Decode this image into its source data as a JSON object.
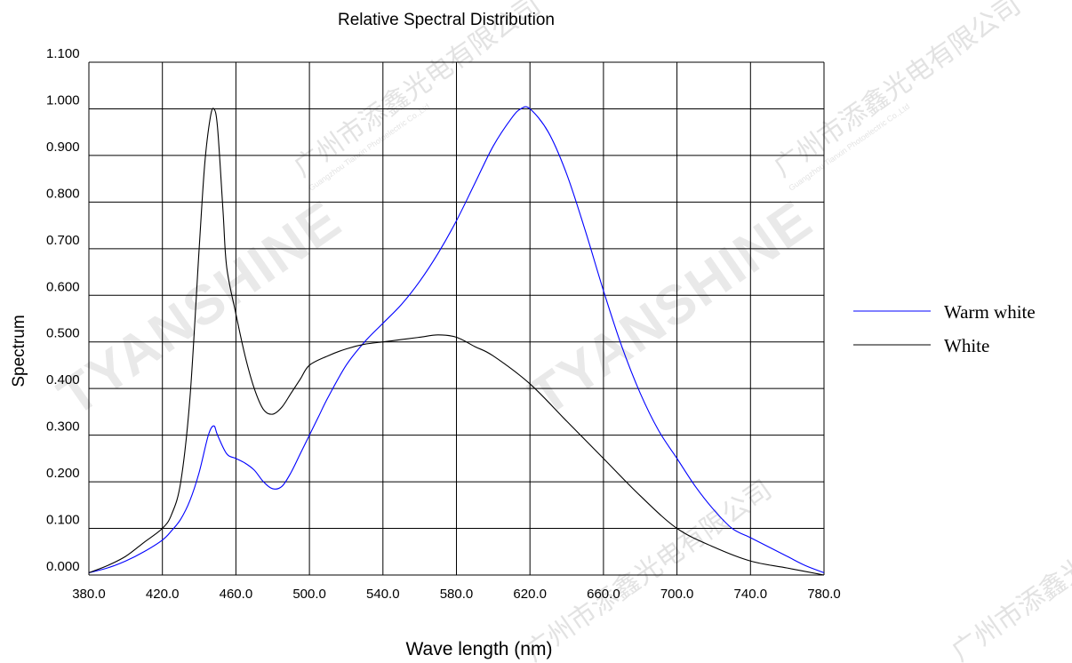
{
  "watermark": {
    "brand": "TYANSHINE",
    "company_cn": "广州市添鑫光电有限公司",
    "company_en": "Guangzhou Tianxin Photoelectric Co.,Ltd"
  },
  "colors": {
    "warm_white": "#0000ff",
    "white": "#000000",
    "grid": "#000000"
  },
  "chart_data": {
    "type": "line",
    "title": "Relative Spectral Distribution",
    "xlabel": "Wave length (nm)",
    "ylabel": "Spectrum",
    "xlim": [
      380,
      780
    ],
    "ylim": [
      0,
      1.1
    ],
    "grid": true,
    "legend_position": "right",
    "x_ticks": [
      380,
      420,
      460,
      500,
      540,
      580,
      620,
      660,
      700,
      740,
      780
    ],
    "x_tick_labels": [
      "380.0",
      "420.0",
      "460.0",
      "500.0",
      "540.0",
      "580.0",
      "620.0",
      "660.0",
      "700.0",
      "740.0",
      "780.0"
    ],
    "y_ticks": [
      0,
      0.1,
      0.2,
      0.3,
      0.4,
      0.5,
      0.6,
      0.7,
      0.8,
      0.9,
      1.0,
      1.1
    ],
    "y_tick_labels": [
      "0.000",
      "0.100",
      "0.200",
      "0.300",
      "0.400",
      "0.500",
      "0.600",
      "0.700",
      "0.800",
      "0.900",
      "1.000",
      "1.100"
    ],
    "series": [
      {
        "name": "Warm white",
        "color": "#0000ff",
        "x": [
          380,
          390,
          400,
          410,
          420,
          425,
          430,
          435,
          440,
          445,
          448,
          450,
          455,
          460,
          465,
          470,
          475,
          480,
          485,
          490,
          495,
          500,
          505,
          510,
          520,
          530,
          540,
          550,
          560,
          570,
          580,
          590,
          600,
          610,
          615,
          620,
          630,
          640,
          650,
          660,
          670,
          680,
          690,
          700,
          710,
          720,
          730,
          740,
          750,
          760,
          770,
          780
        ],
        "y": [
          0.005,
          0.015,
          0.03,
          0.05,
          0.075,
          0.095,
          0.12,
          0.16,
          0.22,
          0.3,
          0.32,
          0.3,
          0.26,
          0.25,
          0.24,
          0.225,
          0.2,
          0.185,
          0.19,
          0.22,
          0.26,
          0.3,
          0.34,
          0.38,
          0.45,
          0.5,
          0.54,
          0.58,
          0.63,
          0.69,
          0.76,
          0.84,
          0.92,
          0.98,
          1.0,
          1.0,
          0.95,
          0.86,
          0.74,
          0.61,
          0.49,
          0.39,
          0.31,
          0.25,
          0.19,
          0.14,
          0.1,
          0.08,
          0.06,
          0.04,
          0.02,
          0.005
        ]
      },
      {
        "name": "White",
        "color": "#000000",
        "x": [
          380,
          390,
          400,
          410,
          420,
          425,
          430,
          435,
          440,
          443,
          446,
          448,
          450,
          453,
          455,
          460,
          465,
          470,
          475,
          480,
          485,
          490,
          495,
          500,
          510,
          520,
          530,
          540,
          550,
          560,
          570,
          580,
          590,
          600,
          620,
          640,
          660,
          680,
          700,
          720,
          740,
          760,
          780
        ],
        "y": [
          0.005,
          0.02,
          0.04,
          0.07,
          0.1,
          0.13,
          0.2,
          0.38,
          0.7,
          0.88,
          0.98,
          1.0,
          0.96,
          0.78,
          0.66,
          0.56,
          0.47,
          0.4,
          0.355,
          0.345,
          0.36,
          0.39,
          0.42,
          0.45,
          0.47,
          0.485,
          0.495,
          0.5,
          0.505,
          0.51,
          0.515,
          0.51,
          0.49,
          0.47,
          0.41,
          0.33,
          0.25,
          0.17,
          0.1,
          0.06,
          0.03,
          0.015,
          0.0
        ]
      }
    ]
  }
}
